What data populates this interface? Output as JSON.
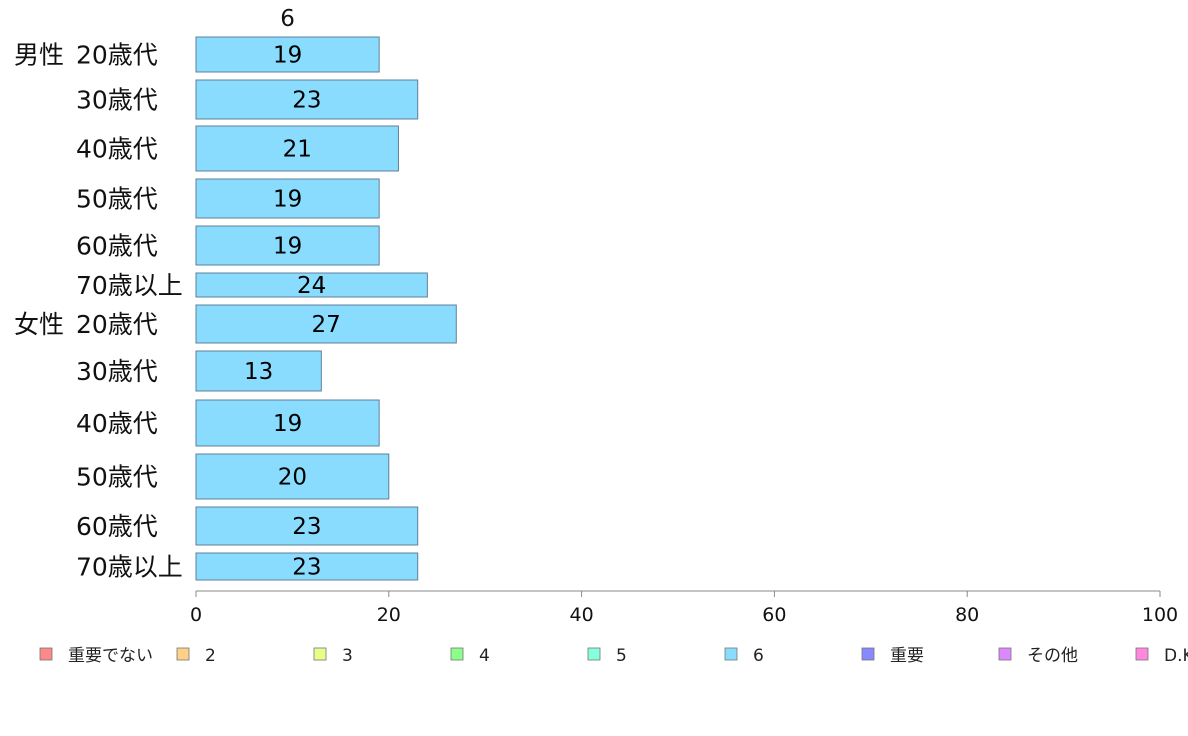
{
  "chart_data": {
    "type": "bar",
    "orientation": "horizontal",
    "stacked": true,
    "segment_label": "6",
    "groups": [
      {
        "label": "男性",
        "start": 0
      },
      {
        "label": "女性",
        "start": 6
      }
    ],
    "categories": [
      "20歳代",
      "30歳代",
      "40歳代",
      "50歳代",
      "60歳代",
      "70歳以上",
      "20歳代",
      "30歳代",
      "40歳代",
      "50歳代",
      "60歳代",
      "70歳以上"
    ],
    "series": [
      {
        "name": "6",
        "color": "#8adcff",
        "values": [
          19,
          23,
          21,
          19,
          19,
          24,
          27,
          13,
          19,
          20,
          23,
          23
        ],
        "labels": [
          "19",
          "23",
          "21",
          "19",
          "19",
          "24",
          "27",
          "13",
          "19",
          "20",
          "23",
          "23"
        ]
      }
    ],
    "xlim": [
      0,
      100
    ],
    "xticks": [
      0,
      20,
      40,
      60,
      80,
      100
    ],
    "xtick_labels": [
      "0",
      "20",
      "40",
      "60",
      "80",
      "100"
    ],
    "legend": {
      "position": "bottom",
      "items": [
        {
          "label": "重要でない",
          "color": "#ff8888"
        },
        {
          "label": "2",
          "color": "#ffd088"
        },
        {
          "label": "3",
          "color": "#e6ff88"
        },
        {
          "label": "4",
          "color": "#8cff88"
        },
        {
          "label": "5",
          "color": "#88ffdc"
        },
        {
          "label": "6",
          "color": "#8adcff"
        },
        {
          "label": "重要",
          "color": "#8888ff"
        },
        {
          "label": "その他",
          "color": "#dc88ff"
        },
        {
          "label": "D.K.",
          "color": "#ff88dc"
        }
      ]
    }
  }
}
